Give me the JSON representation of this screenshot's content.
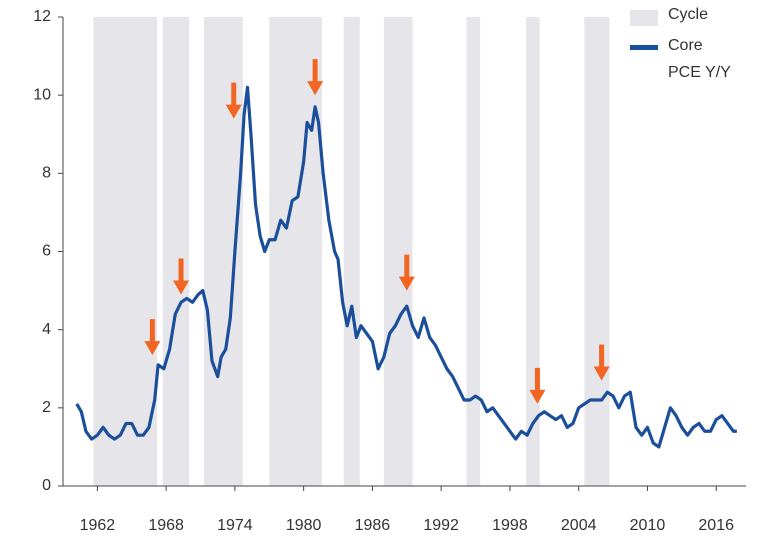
{
  "chart_data": {
    "type": "line",
    "x": [
      1960.2,
      1960.6,
      1961,
      1961.5,
      1962,
      1962.5,
      1963,
      1963.5,
      1964,
      1964.5,
      1965,
      1965.5,
      1966,
      1966.5,
      1967,
      1967.3,
      1967.8,
      1968.3,
      1968.8,
      1969.3,
      1969.8,
      1970.3,
      1970.8,
      1971.2,
      1971.6,
      1972,
      1972.5,
      1972.8,
      1973.2,
      1973.6,
      1974,
      1974.5,
      1974.8,
      1975.1,
      1975.4,
      1975.8,
      1976.2,
      1976.6,
      1977,
      1977.5,
      1978,
      1978.5,
      1979,
      1979.5,
      1980,
      1980.3,
      1980.7,
      1981,
      1981.3,
      1981.7,
      1982.2,
      1982.7,
      1983,
      1983.4,
      1983.8,
      1984.2,
      1984.6,
      1985,
      1985.5,
      1986,
      1986.5,
      1987,
      1987.5,
      1988,
      1988.5,
      1989,
      1989.5,
      1990,
      1990.5,
      1991,
      1991.5,
      1992,
      1992.5,
      1993,
      1993.5,
      1994,
      1994.5,
      1995,
      1995.5,
      1996,
      1996.5,
      1997,
      1997.5,
      1998,
      1998.5,
      1999,
      1999.5,
      2000,
      2000.5,
      2001,
      2001.5,
      2002,
      2002.5,
      2003,
      2003.5,
      2004,
      2004.5,
      2005,
      2005.5,
      2006,
      2006.5,
      2007,
      2007.5,
      2008,
      2008.5,
      2009,
      2009.5,
      2010,
      2010.5,
      2011,
      2011.5,
      2012,
      2012.5,
      2013,
      2013.5,
      2014,
      2014.5,
      2015,
      2015.5,
      2016,
      2016.5,
      2017,
      2017.5,
      2017.8
    ],
    "series": [
      {
        "name": "Core PCE Y/Y",
        "color": "#1b4f9b",
        "values": [
          2.1,
          1.9,
          1.4,
          1.2,
          1.3,
          1.5,
          1.3,
          1.2,
          1.3,
          1.6,
          1.6,
          1.3,
          1.3,
          1.5,
          2.2,
          3.1,
          3.0,
          3.5,
          4.4,
          4.7,
          4.8,
          4.7,
          4.9,
          5.0,
          4.5,
          3.2,
          2.8,
          3.3,
          3.5,
          4.3,
          6.0,
          8.0,
          9.5,
          10.2,
          9.0,
          7.2,
          6.4,
          6.0,
          6.3,
          6.3,
          6.8,
          6.6,
          7.3,
          7.4,
          8.3,
          9.3,
          9.1,
          9.7,
          9.3,
          8.0,
          6.8,
          6.0,
          5.8,
          4.7,
          4.1,
          4.6,
          3.8,
          4.1,
          3.9,
          3.7,
          3.0,
          3.3,
          3.9,
          4.1,
          4.4,
          4.6,
          4.1,
          3.8,
          4.3,
          3.8,
          3.6,
          3.3,
          3.0,
          2.8,
          2.5,
          2.2,
          2.2,
          2.3,
          2.2,
          1.9,
          2.0,
          1.8,
          1.6,
          1.4,
          1.2,
          1.4,
          1.3,
          1.6,
          1.8,
          1.9,
          1.8,
          1.7,
          1.8,
          1.5,
          1.6,
          2.0,
          2.1,
          2.2,
          2.2,
          2.2,
          2.4,
          2.3,
          2.0,
          2.3,
          2.4,
          1.5,
          1.3,
          1.5,
          1.1,
          1.0,
          1.5,
          2.0,
          1.8,
          1.5,
          1.3,
          1.5,
          1.6,
          1.4,
          1.4,
          1.7,
          1.8,
          1.6,
          1.4,
          1.4
        ]
      }
    ],
    "cycles": {
      "name": "Cycle",
      "color": "#e6e6ea",
      "ranges": [
        [
          1961.65,
          1967.2
        ],
        [
          1967.7,
          1970.0
        ],
        [
          1971.3,
          1974.7
        ],
        [
          1977.0,
          1981.6
        ],
        [
          1983.5,
          1984.9
        ],
        [
          1987.0,
          1989.5
        ],
        [
          1994.2,
          1995.4
        ],
        [
          1999.4,
          2000.6
        ],
        [
          2004.5,
          2006.7
        ]
      ]
    },
    "arrows": {
      "color": "#f26522",
      "points": [
        {
          "x": 1966.8,
          "y": 3.35
        },
        {
          "x": 1969.3,
          "y": 4.9
        },
        {
          "x": 1973.9,
          "y": 9.4
        },
        {
          "x": 1981.0,
          "y": 10.0
        },
        {
          "x": 1989.0,
          "y": 5.0
        },
        {
          "x": 2000.4,
          "y": 2.1
        },
        {
          "x": 2006.0,
          "y": 2.7
        }
      ]
    },
    "xlim": [
      1959,
      2018.6
    ],
    "xticks": [
      1962,
      1968,
      1974,
      1980,
      1986,
      1992,
      1998,
      2004,
      2010,
      2016
    ],
    "ylim": [
      0,
      12
    ],
    "yticks": [
      0,
      2,
      4,
      6,
      8,
      10,
      12
    ]
  }
}
